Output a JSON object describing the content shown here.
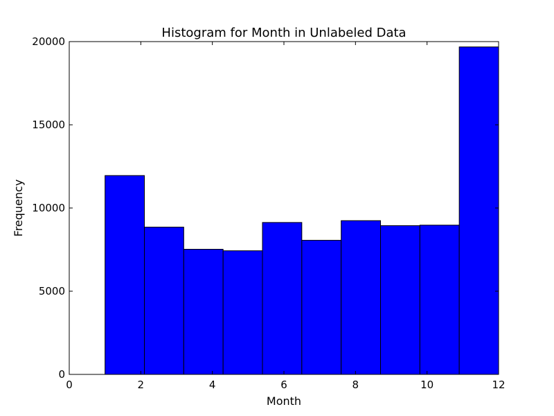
{
  "chart_data": {
    "type": "bar",
    "title": "Histogram for Month in Unlabeled Data",
    "xlabel": "Month",
    "ylabel": "Frequency",
    "xlim": [
      0,
      12
    ],
    "ylim": [
      0,
      20000
    ],
    "xticks": [
      0,
      2,
      4,
      6,
      8,
      10,
      12
    ],
    "yticks": [
      0,
      5000,
      10000,
      15000,
      20000
    ],
    "bin_edges": [
      1.0,
      2.1,
      3.2,
      4.3,
      5.4,
      6.5,
      7.6,
      8.7,
      9.8,
      10.9,
      12.0
    ],
    "values": [
      11950,
      8850,
      7520,
      7430,
      9130,
      8060,
      9240,
      8940,
      8970,
      19680
    ],
    "bar_color": "#0000ff",
    "edge_color": "#000000",
    "grid": false,
    "legend": "none"
  }
}
